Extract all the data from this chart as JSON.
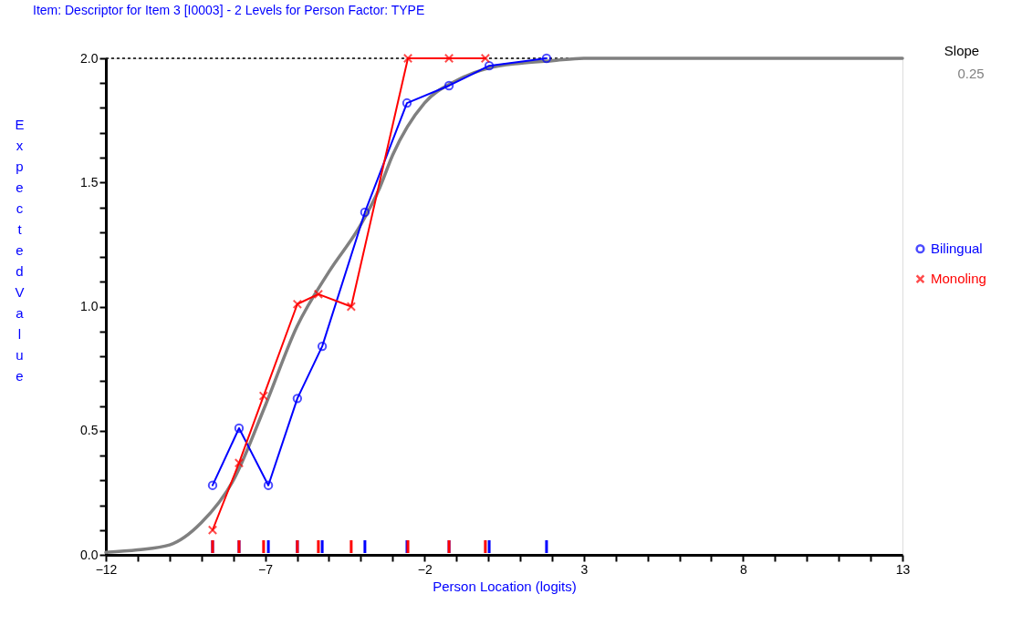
{
  "chart_data": {
    "type": "line",
    "title": "Item: Descriptor for Item 3 [I0003] - 2 Levels for Person Factor: TYPE",
    "xlabel": "Person Location (logits)",
    "ylabel": "Expected Value",
    "annotations": [
      "Slope",
      "0.25"
    ],
    "xlim": [
      -12,
      13
    ],
    "ylim": [
      0,
      2
    ],
    "xticks": [
      -12,
      {
        "value": -11,
        "label": null
      },
      {
        "value": -10,
        "label": null
      },
      {
        "value": -9,
        "label": null
      },
      {
        "value": -8,
        "label": null
      },
      -7,
      {
        "value": -6,
        "label": null
      },
      {
        "value": -5,
        "label": null
      },
      {
        "value": -4,
        "label": null
      },
      {
        "value": -3,
        "label": null
      },
      -2,
      {
        "value": -1,
        "label": null
      },
      {
        "value": 0,
        "label": null
      },
      {
        "value": 1,
        "label": null
      },
      {
        "value": 2,
        "label": null
      },
      3,
      {
        "value": 4,
        "label": null
      },
      {
        "value": 5,
        "label": null
      },
      {
        "value": 6,
        "label": null
      },
      {
        "value": 7,
        "label": null
      },
      8,
      {
        "value": 9,
        "label": null
      },
      {
        "value": 10,
        "label": null
      },
      {
        "value": 11,
        "label": null
      },
      {
        "value": 12,
        "label": null
      },
      13
    ],
    "yticks": [
      {
        "value": 0,
        "label": "0.0"
      },
      {
        "value": 0.1,
        "label": null
      },
      {
        "value": 0.2,
        "label": null
      },
      {
        "value": 0.3,
        "label": null
      },
      {
        "value": 0.4,
        "label": null
      },
      0.5,
      {
        "value": 0.6,
        "label": null
      },
      {
        "value": 0.7,
        "label": null
      },
      {
        "value": 0.8,
        "label": null
      },
      {
        "value": 0.9,
        "label": null
      },
      {
        "value": 1,
        "label": "1.0"
      },
      {
        "value": 1.1,
        "label": null
      },
      {
        "value": 1.2,
        "label": null
      },
      {
        "value": 1.3,
        "label": null
      },
      {
        "value": 1.4,
        "label": null
      },
      1.5,
      {
        "value": 1.6,
        "label": null
      },
      {
        "value": 1.7,
        "label": null
      },
      {
        "value": 1.8,
        "label": null
      },
      {
        "value": 1.9,
        "label": null
      },
      {
        "value": 2,
        "label": "2.0"
      }
    ],
    "grid": false,
    "legend": "right",
    "ref_lines": [
      {
        "axis": "y",
        "value": 2,
        "color": "#000000",
        "line_style": "dotted"
      }
    ],
    "series": [
      {
        "color": "#808080",
        "marker": "none",
        "x": [
          -12,
          -11,
          -10,
          -9,
          -8,
          -7,
          -6,
          -5,
          -4,
          -3.4,
          -3,
          -2,
          -1,
          0,
          1,
          2,
          3,
          13
        ],
        "values": [
          0.01,
          0.02,
          0.04,
          0.13,
          0.3,
          0.6,
          0.92,
          1.14,
          1.33,
          1.48,
          1.61,
          1.82,
          1.91,
          1.96,
          1.98,
          1.99,
          2.0,
          2.0
        ]
      },
      {
        "name": "Bilingual",
        "color": "#0000ff",
        "marker": "circle",
        "x": [
          -8.65,
          -7.82,
          -6.9,
          -5.99,
          -5.21,
          -3.87,
          -2.55,
          -1.23,
          0.03,
          1.83
        ],
        "values": [
          0.28,
          0.51,
          0.28,
          0.63,
          0.84,
          1.38,
          1.82,
          1.89,
          1.97,
          2.0
        ]
      },
      {
        "name": "Monoling",
        "color": "#ff0000",
        "marker": "cross",
        "x": [
          -8.65,
          -7.82,
          -7.05,
          -5.99,
          -5.33,
          -4.3,
          -2.52,
          -1.23,
          -0.09
        ],
        "values": [
          0.1,
          0.37,
          0.64,
          1.01,
          1.05,
          1.0,
          2.0,
          2.0,
          2.0
        ]
      }
    ]
  }
}
